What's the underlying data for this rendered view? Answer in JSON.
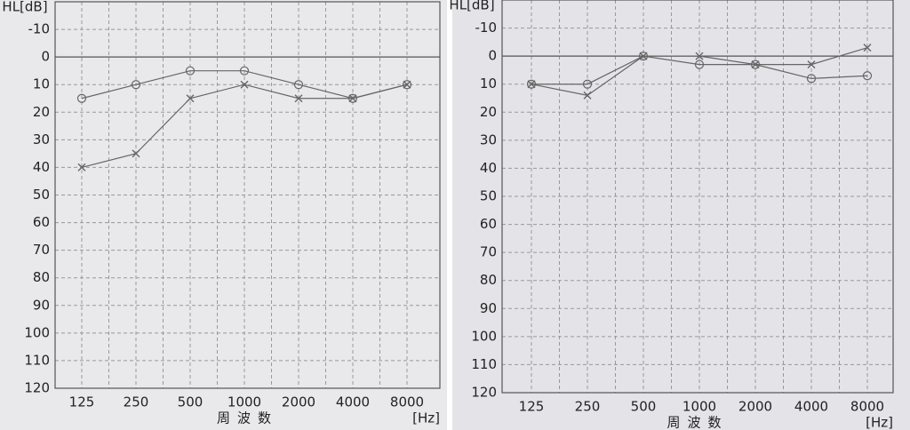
{
  "chart_data": [
    {
      "type": "line",
      "y_label": "HL[dB]",
      "x_label": "周波数",
      "x_unit": "[Hz]",
      "categories": [
        "125",
        "250",
        "500",
        "1000",
        "2000",
        "4000",
        "8000"
      ],
      "ylim": [
        -20,
        120
      ],
      "yticks": [
        -10,
        0,
        10,
        20,
        30,
        40,
        50,
        60,
        70,
        80,
        90,
        100,
        110,
        120
      ],
      "invert_y": true,
      "grid": true,
      "series": [
        {
          "marker": "circle",
          "color": "#666666",
          "values": [
            15,
            10,
            5,
            5,
            10,
            15,
            10
          ]
        },
        {
          "marker": "cross",
          "color": "#666666",
          "values": [
            40,
            35,
            15,
            10,
            15,
            15,
            10
          ]
        }
      ]
    },
    {
      "type": "line",
      "y_label": "HL[dB]",
      "x_label": "周波数",
      "x_unit": "[Hz]",
      "categories": [
        "125",
        "250",
        "500",
        "1000",
        "2000",
        "4000",
        "8000"
      ],
      "ylim": [
        -20,
        120
      ],
      "yticks": [
        -10,
        0,
        10,
        20,
        30,
        40,
        50,
        60,
        70,
        80,
        90,
        100,
        110,
        120
      ],
      "invert_y": true,
      "grid": true,
      "series": [
        {
          "marker": "circle",
          "color": "#666666",
          "values": [
            10,
            10,
            0,
            3,
            3,
            8,
            7
          ]
        },
        {
          "marker": "cross",
          "color": "#666666",
          "values": [
            10,
            14,
            0,
            0,
            3,
            3,
            -3
          ]
        }
      ]
    }
  ]
}
